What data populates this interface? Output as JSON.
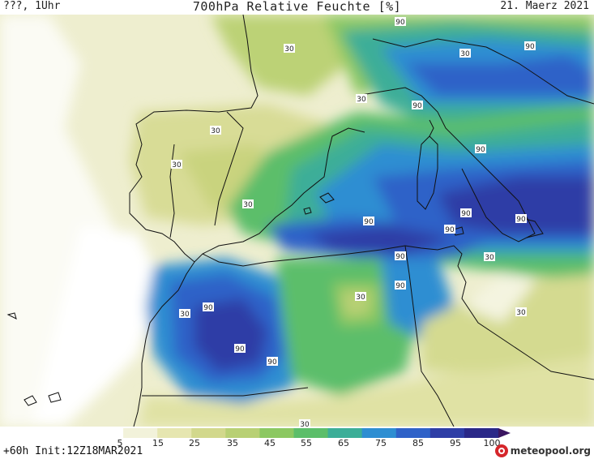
{
  "header": {
    "left": "???, 1Uhr",
    "title": "700hPa Relative Feuchte [%]",
    "date": "21. Maerz 2021"
  },
  "footer": {
    "run": "+60h  Init:12Z18MAR2021",
    "logo": "meteopool.org"
  },
  "colorbar": {
    "ticks": [
      "5",
      "15",
      "25",
      "35",
      "45",
      "55",
      "65",
      "75",
      "85",
      "95",
      "100"
    ],
    "colors": [
      "#ffffff",
      "#f2f2da",
      "#e6e6b0",
      "#d2d88c",
      "#b8d074",
      "#8cc862",
      "#5cbe6a",
      "#3cae98",
      "#2e8ed2",
      "#2f62c8",
      "#2e3ea6",
      "#2a2888",
      "#3a1560"
    ]
  },
  "contour_labels": [
    {
      "text": "30"
    },
    {
      "text": "30"
    },
    {
      "text": "30"
    },
    {
      "text": "30"
    },
    {
      "text": "30"
    },
    {
      "text": "30"
    },
    {
      "text": "30"
    },
    {
      "text": "30"
    },
    {
      "text": "30"
    },
    {
      "text": "30"
    },
    {
      "text": "30"
    },
    {
      "text": "90"
    },
    {
      "text": "90"
    },
    {
      "text": "90"
    },
    {
      "text": "90"
    },
    {
      "text": "90"
    },
    {
      "text": "90"
    },
    {
      "text": "90"
    },
    {
      "text": "90"
    },
    {
      "text": "90"
    },
    {
      "text": "90"
    },
    {
      "text": "90"
    },
    {
      "text": "90"
    },
    {
      "text": "90"
    }
  ]
}
